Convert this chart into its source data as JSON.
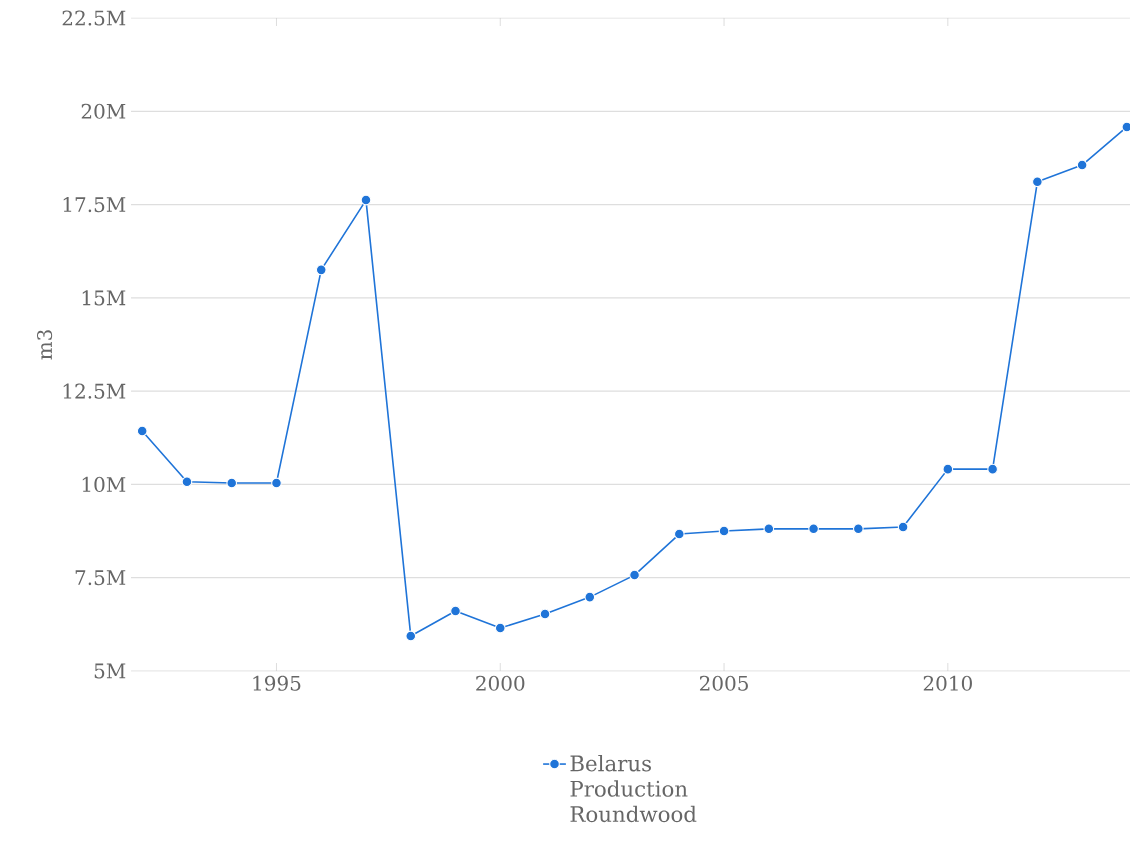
{
  "chart_data": {
    "type": "line",
    "ylabel": "m3",
    "x": [
      1992,
      1993,
      1994,
      1995,
      1996,
      1997,
      1998,
      1999,
      2000,
      2001,
      2002,
      2003,
      2004,
      2005,
      2006,
      2007,
      2008,
      2009,
      2010,
      2011,
      2012,
      2013,
      2014
    ],
    "series": [
      {
        "name": "Belarus Production Roundwood",
        "color": "#1f74d8",
        "values": [
          11430000,
          10070000,
          10040000,
          10040000,
          15750000,
          17620000,
          5940000,
          6610000,
          6150000,
          6530000,
          6980000,
          7570000,
          8670000,
          8750000,
          8810000,
          8810000,
          8810000,
          8860000,
          10410000,
          10410000,
          18110000,
          18560000,
          19580000
        ]
      }
    ],
    "xlim": [
      1991.75,
      2014.07
    ],
    "ylim": [
      5000000,
      22500000
    ],
    "xticks": [
      1995,
      2000,
      2005,
      2010
    ],
    "yticks": [
      {
        "value": 5000000,
        "label": "5M"
      },
      {
        "value": 7500000,
        "label": "7.5M"
      },
      {
        "value": 10000000,
        "label": "10M"
      },
      {
        "value": 12500000,
        "label": "12.5M"
      },
      {
        "value": 15000000,
        "label": "15M"
      },
      {
        "value": 17500000,
        "label": "17.5M"
      },
      {
        "value": 20000000,
        "label": "20M"
      },
      {
        "value": 22500000,
        "label": "22.5M"
      }
    ],
    "grid": "y",
    "legend": "bottom",
    "marker": "circle",
    "line_style": "solid"
  }
}
